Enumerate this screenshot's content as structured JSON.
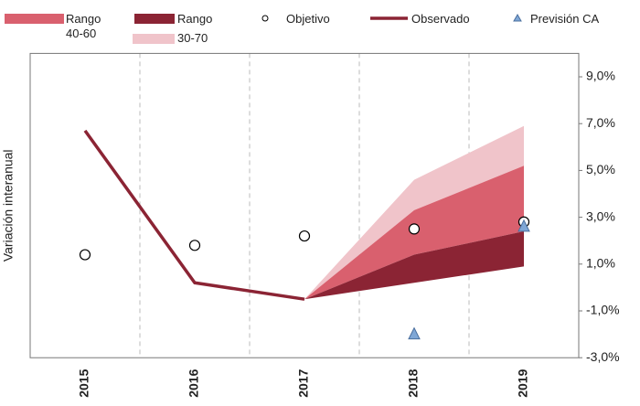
{
  "chart_data": {
    "type": "fan",
    "y_label": "Variación interanual",
    "categories": [
      "2015",
      "2016",
      "2017",
      "2018",
      "2019"
    ],
    "bands": [
      {
        "name": "30-70",
        "color": "#f0c4ca",
        "low": [
          null,
          null,
          -0.5,
          3.3,
          5.2
        ],
        "high": [
          null,
          null,
          -0.5,
          4.6,
          6.9
        ]
      },
      {
        "name": "Rango 40-60",
        "color": "#d9606e",
        "low": [
          null,
          null,
          -0.5,
          1.4,
          2.4
        ],
        "high": [
          null,
          null,
          -0.5,
          3.3,
          5.2
        ]
      },
      {
        "name": "Rango",
        "color": "#8b2434",
        "low": [
          null,
          null,
          -0.5,
          0.2,
          0.9
        ],
        "high": [
          null,
          null,
          -0.5,
          1.4,
          2.4
        ]
      }
    ],
    "series": [
      {
        "name": "Objetivo",
        "kind": "circle",
        "color": "#000000",
        "values": [
          1.4,
          1.8,
          2.2,
          2.5,
          2.8
        ]
      },
      {
        "name": "Observado",
        "kind": "line",
        "color": "#8b2434",
        "values": [
          6.7,
          0.2,
          -0.5,
          null,
          null
        ]
      },
      {
        "name": "Previsión CA",
        "kind": "triangle",
        "color": "#7fa7d6",
        "values": [
          null,
          null,
          null,
          -2.0,
          2.6
        ]
      }
    ],
    "ylim": [
      -3,
      10
    ],
    "yticks": [
      {
        "value": -3,
        "label": "-3,0%"
      },
      {
        "value": -1,
        "label": "-1,0%"
      },
      {
        "value": 1,
        "label": "1,0%"
      },
      {
        "value": 3,
        "label": "3,0%"
      },
      {
        "value": 5,
        "label": "5,0%"
      },
      {
        "value": 7,
        "label": "7,0%"
      },
      {
        "value": 9,
        "label": "9,0%"
      }
    ]
  }
}
